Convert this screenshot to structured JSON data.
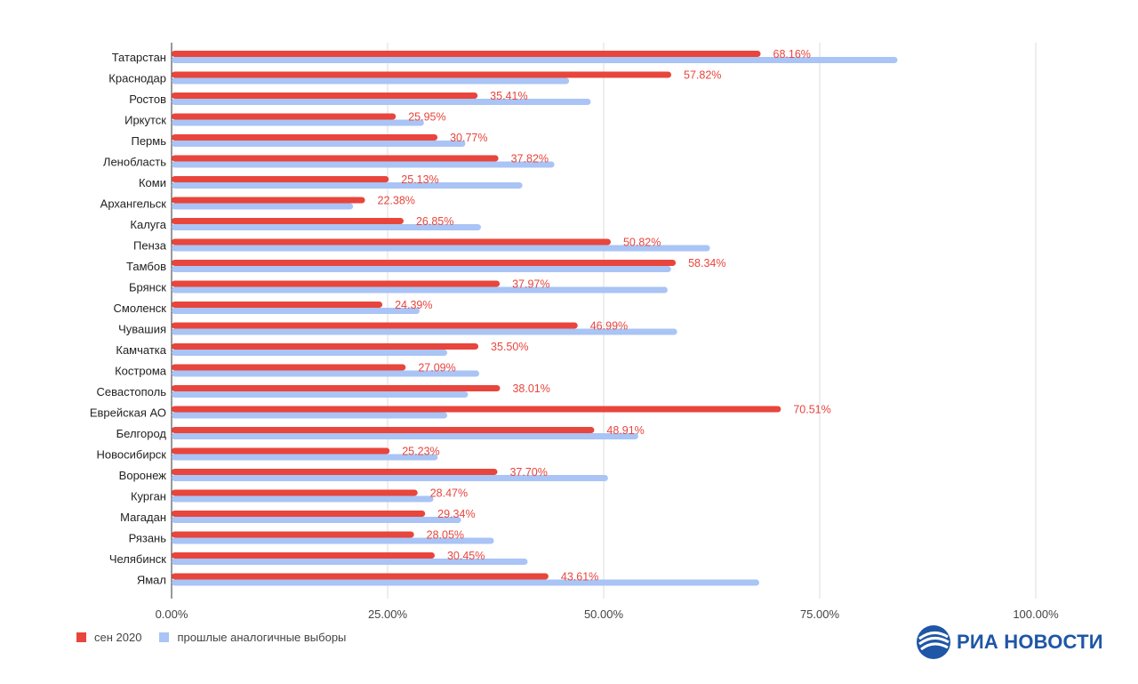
{
  "chart_data": {
    "type": "bar",
    "orientation": "horizontal",
    "categories": [
      "Татарстан",
      "Краснодар",
      "Ростов",
      "Иркутск",
      "Пермь",
      "Ленобласть",
      "Коми",
      "Архангельск",
      "Калуга",
      "Пенза",
      "Тамбов",
      "Брянск",
      "Смоленск",
      "Чувашия",
      "Камчатка",
      "Кострома",
      "Севастополь",
      "Еврейская АО",
      "Белгород",
      "Новосибирск",
      "Воронеж",
      "Курган",
      "Магадан",
      "Рязань",
      "Челябинск",
      "Ямал"
    ],
    "series": [
      {
        "name": "сен 2020",
        "color": "#e8453c",
        "values": [
          68.16,
          57.82,
          35.41,
          25.95,
          30.77,
          37.82,
          25.13,
          22.38,
          26.85,
          50.82,
          58.34,
          37.97,
          24.39,
          46.99,
          35.5,
          27.09,
          38.01,
          70.51,
          48.91,
          25.23,
          37.7,
          28.47,
          29.34,
          28.05,
          30.45,
          43.61
        ],
        "labels": [
          "68.16%",
          "57.82%",
          "35.41%",
          "25.95%",
          "30.77%",
          "37.82%",
          "25.13%",
          "22.38%",
          "26.85%",
          "50.82%",
          "58.34%",
          "37.97%",
          "24.39%",
          "46.99%",
          "35.50%",
          "27.09%",
          "38.01%",
          "70.51%",
          "48.91%",
          "25.23%",
          "37.70%",
          "28.47%",
          "29.34%",
          "28.05%",
          "30.45%",
          "43.61%"
        ]
      },
      {
        "name": "прошлые аналогичные выборы",
        "color": "#a9c4f5",
        "values": [
          84.0,
          46.0,
          48.5,
          29.2,
          34.0,
          44.3,
          40.6,
          21.0,
          35.8,
          62.3,
          57.8,
          57.4,
          28.7,
          58.5,
          31.9,
          35.6,
          34.3,
          31.9,
          54.0,
          30.8,
          50.5,
          30.3,
          33.5,
          37.3,
          41.2,
          68.0
        ]
      }
    ],
    "xlim": [
      0,
      100
    ],
    "xticks": [
      "0.00%",
      "25.00%",
      "50.00%",
      "75.00%",
      "100.00%"
    ],
    "grid": true,
    "legend_position": "bottom-left"
  },
  "logo": {
    "text": "РИА НОВОСТИ",
    "color": "#1f56a6"
  }
}
